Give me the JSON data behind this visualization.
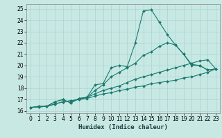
{
  "xlabel": "Humidex (Indice chaleur)",
  "xlim": [
    -0.5,
    23.5
  ],
  "ylim": [
    15.8,
    25.4
  ],
  "yticks": [
    16,
    17,
    18,
    19,
    20,
    21,
    22,
    23,
    24,
    25
  ],
  "xticks": [
    0,
    1,
    2,
    3,
    4,
    5,
    6,
    7,
    8,
    9,
    10,
    11,
    12,
    13,
    14,
    15,
    16,
    17,
    18,
    19,
    20,
    21,
    22,
    23
  ],
  "background_color": "#c8e8e4",
  "grid_color": "#a8d4d0",
  "line_color": "#1a7a6e",
  "line1_x": [
    0,
    1,
    2,
    3,
    4,
    5,
    6,
    7,
    8,
    9,
    10,
    11,
    12,
    13,
    14,
    15,
    16,
    17,
    18,
    19,
    20,
    21,
    22,
    23
  ],
  "line1_y": [
    16.3,
    16.4,
    16.4,
    16.8,
    17.0,
    16.7,
    17.1,
    17.2,
    18.3,
    18.4,
    19.8,
    20.0,
    19.9,
    22.0,
    24.8,
    24.9,
    23.8,
    22.7,
    21.8,
    21.0,
    20.1,
    20.0,
    19.6,
    19.7
  ],
  "line2_x": [
    0,
    1,
    2,
    3,
    4,
    5,
    6,
    7,
    8,
    9,
    10,
    11,
    12,
    13,
    14,
    15,
    16,
    17,
    18,
    19,
    20,
    21,
    22,
    23
  ],
  "line2_y": [
    16.3,
    16.4,
    16.4,
    16.8,
    17.0,
    16.7,
    17.1,
    17.2,
    17.8,
    18.3,
    19.0,
    19.4,
    19.8,
    20.2,
    20.9,
    21.2,
    21.7,
    22.0,
    21.8,
    21.0,
    20.0,
    20.0,
    19.6,
    19.7
  ],
  "line3_x": [
    0,
    1,
    2,
    3,
    4,
    5,
    6,
    7,
    8,
    9,
    10,
    11,
    12,
    13,
    14,
    15,
    16,
    17,
    18,
    19,
    20,
    21,
    22,
    23
  ],
  "line3_y": [
    16.3,
    16.35,
    16.4,
    16.6,
    16.8,
    16.9,
    17.0,
    17.2,
    17.5,
    17.8,
    18.0,
    18.2,
    18.5,
    18.8,
    19.0,
    19.2,
    19.4,
    19.6,
    19.8,
    20.0,
    20.2,
    20.4,
    20.5,
    19.7
  ],
  "line4_x": [
    0,
    1,
    2,
    3,
    4,
    5,
    6,
    7,
    8,
    9,
    10,
    11,
    12,
    13,
    14,
    15,
    16,
    17,
    18,
    19,
    20,
    21,
    22,
    23
  ],
  "line4_y": [
    16.3,
    16.35,
    16.4,
    16.6,
    16.8,
    16.9,
    17.0,
    17.1,
    17.3,
    17.5,
    17.6,
    17.8,
    17.9,
    18.1,
    18.2,
    18.4,
    18.5,
    18.6,
    18.7,
    18.9,
    19.0,
    19.2,
    19.4,
    19.7
  ]
}
